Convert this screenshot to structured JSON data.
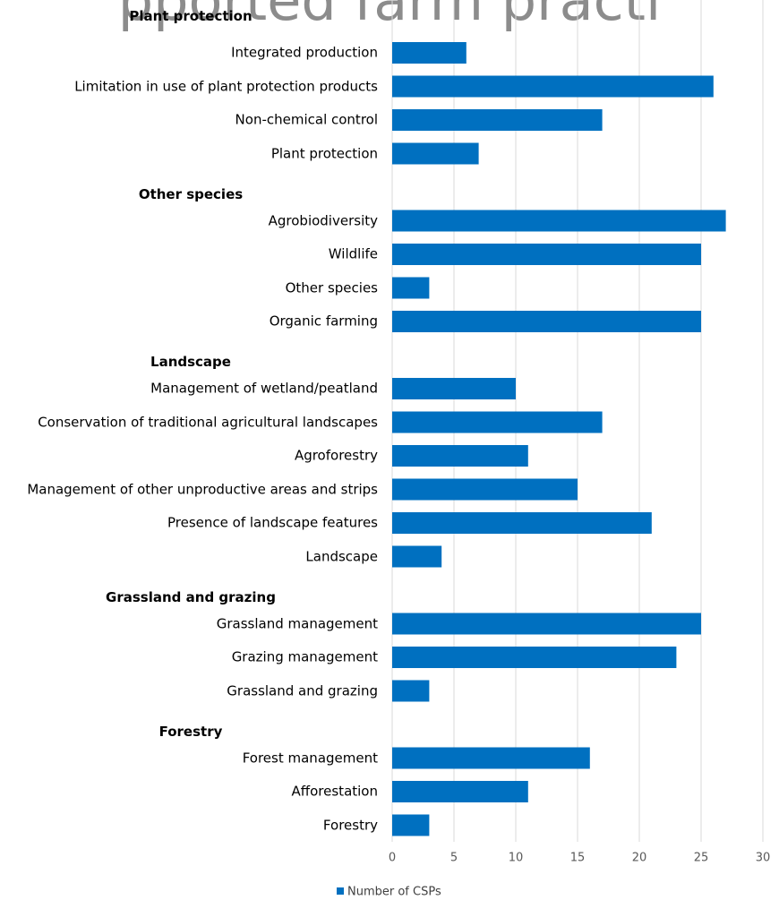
{
  "chart_data": {
    "type": "bar",
    "orientation": "horizontal",
    "title": "pported farm practi",
    "groups": [
      {
        "name": "Plant protection",
        "categories": [
          "Integrated production",
          "Limitation in use of plant protection products",
          "Non-chemical control",
          "Plant protection"
        ],
        "values": [
          6,
          26,
          17,
          7
        ]
      },
      {
        "name": "Other species",
        "categories": [
          "Agrobiodiversity",
          "Wildlife",
          "Other species",
          "Organic farming"
        ],
        "values": [
          27,
          25,
          3,
          25
        ]
      },
      {
        "name": "Landscape",
        "categories": [
          "Management of wetland/peatland",
          "Conservation of traditional agricultural landscapes",
          "Agroforestry",
          "Management of other unproductive areas and strips",
          "Presence of landscape features",
          "Landscape"
        ],
        "values": [
          10,
          17,
          11,
          15,
          21,
          4
        ]
      },
      {
        "name": "Grassland and grazing",
        "categories": [
          "Grassland management",
          "Grazing management",
          "Grassland and grazing"
        ],
        "values": [
          25,
          23,
          3
        ]
      },
      {
        "name": "Forestry",
        "categories": [
          "Forest management",
          "Afforestation",
          "Forestry"
        ],
        "values": [
          16,
          11,
          3
        ]
      }
    ],
    "series_name": "Number of CSPs",
    "color": "#0070c0",
    "xlim": [
      0,
      30
    ],
    "xticks": [
      0,
      5,
      10,
      15,
      20,
      25,
      30
    ],
    "grid": true
  }
}
